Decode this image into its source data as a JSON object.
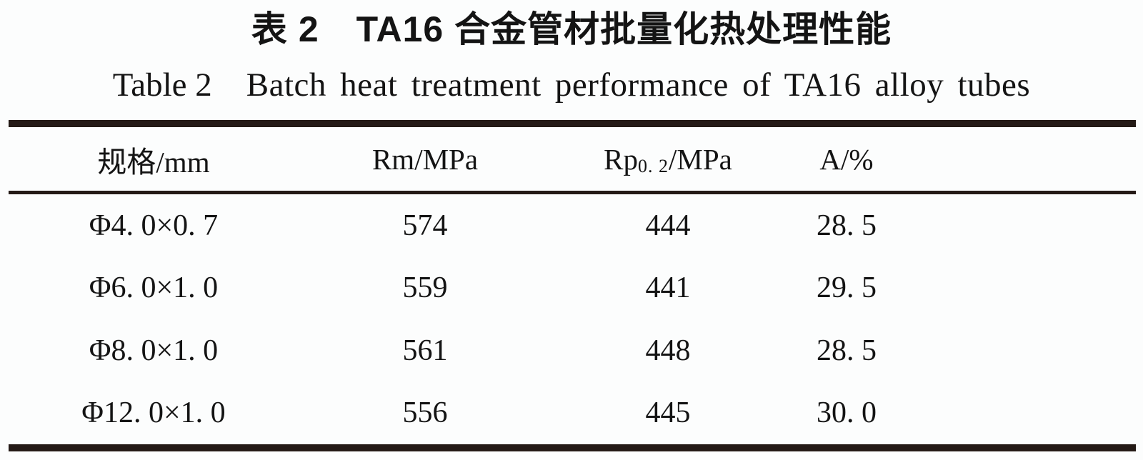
{
  "title": {
    "zh_label": "表 2",
    "zh_text": "TA16 合金管材批量化热处理性能",
    "en_label": "Table 2",
    "en_text": "Batch heat treatment performance of TA16 alloy tubes"
  },
  "table": {
    "columns": {
      "spec": "规格/mm",
      "rm": "Rm/MPa",
      "rp_main": "Rp",
      "rp_sub": "0. 2",
      "rp_rest": "/MPa",
      "a": "A/%"
    },
    "rows": [
      {
        "spec": "Φ4. 0×0. 7",
        "rm": "574",
        "rp02": "444",
        "a": "28. 5"
      },
      {
        "spec": "Φ6. 0×1. 0",
        "rm": "559",
        "rp02": "441",
        "a": "29. 5"
      },
      {
        "spec": "Φ8. 0×1. 0",
        "rm": "561",
        "rp02": "448",
        "a": "28. 5"
      },
      {
        "spec": "Φ12. 0×1. 0",
        "rm": "556",
        "rp02": "445",
        "a": "30. 0"
      }
    ]
  },
  "colors": {
    "rule": "#241a16",
    "text": "#141414",
    "background": "#fcfdfd"
  }
}
